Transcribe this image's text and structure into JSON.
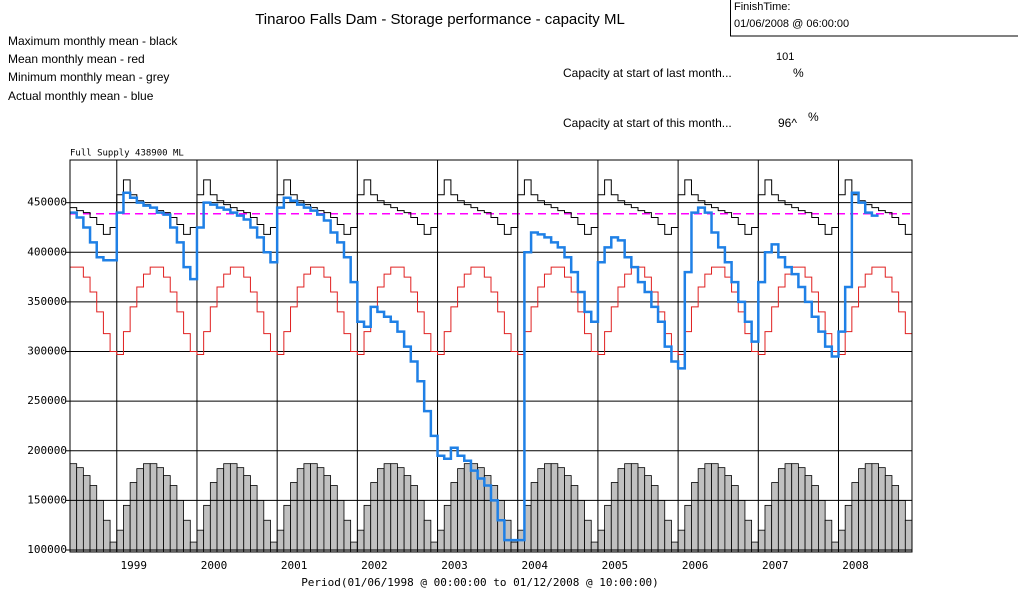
{
  "chart_data": {
    "type": "line",
    "title": "Tinaroo Falls Dam - Storage performance - capacity ML",
    "x_label": "Period(01/06/1998 @ 00:00:00 to 01/12/2008 @ 10:00:00)",
    "finish_time": {
      "label": "FinishTime:",
      "value": "01/06/2008 @ 06:00:00"
    },
    "capacity_last_month": {
      "label": "Capacity at start of last month...",
      "value": "101",
      "unit": "%"
    },
    "capacity_this_month": {
      "label": "Capacity at start of this month...",
      "value": "96^",
      "unit": "%"
    },
    "full_supply": {
      "value": 438900,
      "label": "Full Supply 438900 ML",
      "color": "#ff00ff"
    },
    "ylim": [
      98000,
      493000
    ],
    "yticks": [
      100000,
      150000,
      200000,
      250000,
      300000,
      350000,
      400000,
      450000
    ],
    "grid": true,
    "categories": [
      null,
      null,
      null,
      null,
      null,
      null,
      null,
      "1999",
      null,
      null,
      null,
      null,
      null,
      null,
      null,
      null,
      null,
      null,
      null,
      "2000",
      null,
      null,
      null,
      null,
      null,
      null,
      null,
      null,
      null,
      null,
      null,
      "2001",
      null,
      null,
      null,
      null,
      null,
      null,
      null,
      null,
      null,
      null,
      null,
      "2002",
      null,
      null,
      null,
      null,
      null,
      null,
      null,
      null,
      null,
      null,
      null,
      "2003",
      null,
      null,
      null,
      null,
      null,
      null,
      null,
      null,
      null,
      null,
      null,
      "2004",
      null,
      null,
      null,
      null,
      null,
      null,
      null,
      null,
      null,
      null,
      null,
      "2005",
      null,
      null,
      null,
      null,
      null,
      null,
      null,
      null,
      null,
      null,
      null,
      "2006",
      null,
      null,
      null,
      null,
      null,
      null,
      null,
      null,
      null,
      null,
      null,
      "2007",
      null,
      null,
      null,
      null,
      null,
      null,
      null,
      null,
      null,
      null,
      null,
      "2008",
      null,
      null,
      null,
      null,
      null,
      null,
      null,
      null,
      null,
      null
    ],
    "series": [
      {
        "name": "Maximum monthly mean - black",
        "style": "step",
        "color": "#000000",
        "width": 1,
        "values": [
          445000,
          442000,
          440000,
          435000,
          428000,
          418000,
          425000,
          458000,
          473000,
          458000,
          452000,
          448000,
          445000,
          442000,
          440000,
          435000,
          428000,
          418000,
          425000,
          458000,
          473000,
          458000,
          452000,
          448000,
          445000,
          442000,
          440000,
          435000,
          428000,
          418000,
          425000,
          458000,
          473000,
          458000,
          452000,
          448000,
          445000,
          442000,
          440000,
          435000,
          428000,
          418000,
          425000,
          458000,
          473000,
          458000,
          452000,
          448000,
          445000,
          442000,
          440000,
          435000,
          428000,
          418000,
          425000,
          458000,
          473000,
          458000,
          452000,
          448000,
          445000,
          442000,
          440000,
          435000,
          428000,
          418000,
          425000,
          458000,
          473000,
          458000,
          452000,
          448000,
          445000,
          442000,
          440000,
          435000,
          428000,
          418000,
          425000,
          458000,
          473000,
          458000,
          452000,
          448000,
          445000,
          442000,
          440000,
          435000,
          428000,
          418000,
          425000,
          458000,
          473000,
          458000,
          452000,
          448000,
          445000,
          442000,
          440000,
          435000,
          428000,
          418000,
          425000,
          458000,
          473000,
          458000,
          452000,
          448000,
          445000,
          442000,
          440000,
          435000,
          428000,
          418000,
          425000,
          458000,
          473000,
          458000,
          452000,
          448000,
          445000,
          442000,
          440000,
          435000,
          428000,
          418000
        ]
      },
      {
        "name": "Mean monthly mean - red",
        "style": "step",
        "color": "#e02020",
        "width": 1,
        "values": [
          385000,
          385000,
          375000,
          360000,
          340000,
          318000,
          300000,
          297000,
          320000,
          345000,
          365000,
          378000,
          385000,
          385000,
          375000,
          360000,
          340000,
          318000,
          300000,
          297000,
          320000,
          345000,
          365000,
          378000,
          385000,
          385000,
          375000,
          360000,
          340000,
          318000,
          300000,
          297000,
          320000,
          345000,
          365000,
          378000,
          385000,
          385000,
          375000,
          360000,
          340000,
          318000,
          300000,
          297000,
          320000,
          345000,
          365000,
          378000,
          385000,
          385000,
          375000,
          360000,
          340000,
          318000,
          300000,
          297000,
          320000,
          345000,
          365000,
          378000,
          385000,
          385000,
          375000,
          360000,
          340000,
          318000,
          300000,
          297000,
          320000,
          345000,
          365000,
          378000,
          385000,
          385000,
          375000,
          360000,
          340000,
          318000,
          300000,
          297000,
          320000,
          345000,
          365000,
          378000,
          385000,
          385000,
          375000,
          360000,
          340000,
          318000,
          300000,
          297000,
          320000,
          345000,
          365000,
          378000,
          385000,
          385000,
          375000,
          360000,
          340000,
          318000,
          300000,
          297000,
          320000,
          345000,
          365000,
          378000,
          385000,
          385000,
          375000,
          360000,
          340000,
          318000,
          300000,
          297000,
          320000,
          345000,
          365000,
          378000,
          385000,
          385000,
          375000,
          360000,
          340000,
          318000
        ]
      },
      {
        "name": "Minimum monthly mean - grey",
        "style": "bar",
        "color": "#c0c0c0",
        "values": [
          187000,
          183000,
          175000,
          165000,
          150000,
          130000,
          108000,
          120000,
          145000,
          168000,
          182000,
          187000,
          187000,
          183000,
          175000,
          165000,
          150000,
          130000,
          108000,
          120000,
          145000,
          168000,
          182000,
          187000,
          187000,
          183000,
          175000,
          165000,
          150000,
          130000,
          108000,
          120000,
          145000,
          168000,
          182000,
          187000,
          187000,
          183000,
          175000,
          165000,
          150000,
          130000,
          108000,
          120000,
          145000,
          168000,
          182000,
          187000,
          187000,
          183000,
          175000,
          165000,
          150000,
          130000,
          108000,
          120000,
          145000,
          168000,
          182000,
          187000,
          187000,
          183000,
          175000,
          165000,
          150000,
          130000,
          108000,
          120000,
          145000,
          168000,
          182000,
          187000,
          187000,
          183000,
          175000,
          165000,
          150000,
          130000,
          108000,
          120000,
          145000,
          168000,
          182000,
          187000,
          187000,
          183000,
          175000,
          165000,
          150000,
          130000,
          108000,
          120000,
          145000,
          168000,
          182000,
          187000,
          187000,
          183000,
          175000,
          165000,
          150000,
          130000,
          108000,
          120000,
          145000,
          168000,
          182000,
          187000,
          187000,
          183000,
          175000,
          165000,
          150000,
          130000,
          108000,
          120000,
          145000,
          168000,
          182000,
          187000,
          187000,
          183000,
          175000,
          165000,
          150000,
          130000
        ]
      },
      {
        "name": "Actual monthly mean - blue",
        "style": "step",
        "color": "#1f80e6",
        "width": 2.5,
        "values": [
          440000,
          435000,
          425000,
          410000,
          395000,
          392000,
          392000,
          440000,
          460000,
          455000,
          450000,
          447000,
          445000,
          440000,
          438000,
          425000,
          410000,
          385000,
          373000,
          425000,
          450000,
          448000,
          445000,
          443000,
          440000,
          437000,
          433000,
          425000,
          415000,
          400000,
          390000,
          445000,
          455000,
          452000,
          448000,
          445000,
          442000,
          438000,
          432000,
          420000,
          410000,
          395000,
          370000,
          330000,
          325000,
          345000,
          340000,
          335000,
          330000,
          320000,
          305000,
          290000,
          270000,
          240000,
          215000,
          195000,
          192000,
          203000,
          195000,
          190000,
          180000,
          172000,
          165000,
          150000,
          130000,
          110000,
          110000,
          110000,
          400000,
          420000,
          418000,
          415000,
          410000,
          405000,
          395000,
          380000,
          360000,
          340000,
          330000,
          390000,
          405000,
          415000,
          412000,
          395000,
          385000,
          370000,
          360000,
          345000,
          330000,
          305000,
          290000,
          283000,
          380000,
          440000,
          445000,
          440000,
          420000,
          405000,
          390000,
          370000,
          350000,
          330000,
          310000,
          370000,
          400000,
          408000,
          395000,
          385000,
          378000,
          365000,
          350000,
          335000,
          320000,
          305000,
          295000,
          320000,
          365000,
          460000,
          450000,
          440000,
          437000,
          null,
          null,
          null,
          null,
          null
        ]
      }
    ]
  }
}
